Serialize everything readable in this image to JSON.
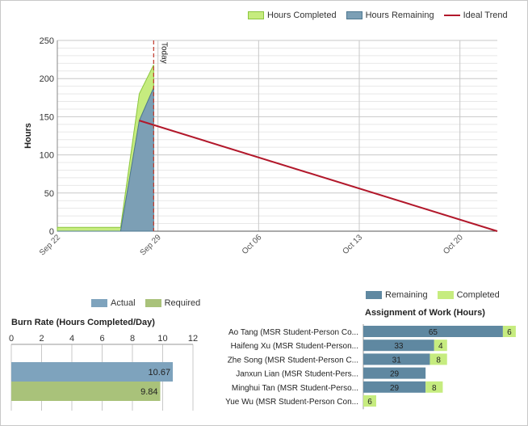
{
  "colors": {
    "completed": "#c6ec7f",
    "completed_stroke": "#8cc63f",
    "remaining": "#7c9fb5",
    "remaining_stroke": "#4e7891",
    "ideal": "#b2182b",
    "today": "#c0392b",
    "actual": "#7ea3bd",
    "required": "#a9c27a",
    "assign_remaining": "#5f88a1",
    "assign_completed": "#c6ec7f",
    "grid": "#c8c8c8",
    "minor_grid": "#e8e8e8"
  },
  "burndown": {
    "legend": [
      "Hours Completed",
      "Hours Remaining",
      "Ideal Trend"
    ],
    "today_label": "Today"
  },
  "burn_rate": {
    "legend": [
      "Actual",
      "Required"
    ],
    "title": "Burn Rate (Hours Completed/Day)"
  },
  "assignment": {
    "legend": [
      "Remaining",
      "Completed"
    ],
    "title": "Assignment of Work (Hours)"
  },
  "chart_data": [
    {
      "type": "area",
      "title": "",
      "ylabel": "Hours",
      "xlabel": "",
      "ylim": [
        0,
        250
      ],
      "yticks": [
        0,
        50,
        100,
        150,
        200,
        250
      ],
      "xticks": [
        "Sep 22",
        "Sep 29",
        "Oct 06",
        "Oct 13",
        "Oct 20"
      ],
      "x_range_days": [
        0,
        30.6
      ],
      "today_day": 6.7,
      "series": [
        {
          "name": "Hours Completed",
          "points": [
            [
              0,
              5
            ],
            [
              4.4,
              5
            ],
            [
              5.7,
              180
            ],
            [
              6.7,
              218
            ]
          ]
        },
        {
          "name": "Hours Remaining",
          "points": [
            [
              0,
              0
            ],
            [
              4.4,
              0
            ],
            [
              5.7,
              145
            ],
            [
              6.7,
              188
            ]
          ]
        },
        {
          "name": "Ideal Trend",
          "points": [
            [
              5.7,
              145
            ],
            [
              30.6,
              0
            ]
          ]
        }
      ]
    },
    {
      "type": "bar",
      "title": "Burn Rate (Hours Completed/Day)",
      "orientation": "horizontal",
      "xlim": [
        0,
        12
      ],
      "xticks": [
        0,
        2,
        4,
        6,
        8,
        10,
        12
      ],
      "series": [
        {
          "name": "Actual",
          "values": [
            10.67
          ],
          "labels": [
            "10.67"
          ]
        },
        {
          "name": "Required",
          "values": [
            9.84
          ],
          "labels": [
            "9.84"
          ]
        }
      ]
    },
    {
      "type": "bar",
      "title": "Assignment of Work (Hours)",
      "orientation": "horizontal",
      "stacked": true,
      "categories": [
        "Ao Tang (MSR Student-Person Co...",
        "Haifeng Xu (MSR Student-Person...",
        "Zhe Song (MSR Student-Person C...",
        "Janxun Lian (MSR Student-Pers...",
        "Minghui Tan (MSR Student-Perso...",
        "Yue Wu (MSR Student-Person Con..."
      ],
      "series": [
        {
          "name": "Remaining",
          "values": [
            65,
            33,
            31,
            29,
            29,
            0
          ]
        },
        {
          "name": "Completed",
          "values": [
            6,
            4,
            8,
            0,
            8,
            6
          ]
        }
      ]
    }
  ]
}
